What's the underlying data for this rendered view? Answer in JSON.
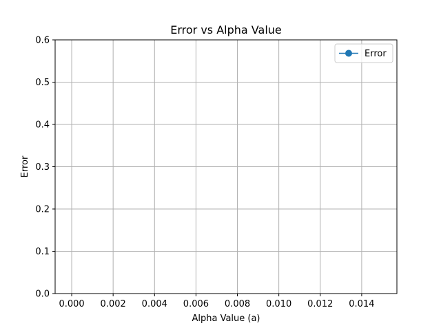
{
  "chart_data": {
    "type": "line",
    "title": "Error vs Alpha Value",
    "xlabel": "Alpha Value (a)",
    "ylabel": "Error",
    "xlim": [
      -0.0008,
      0.0157
    ],
    "ylim": [
      0,
      0.6
    ],
    "xticks": [
      0.0,
      0.002,
      0.004,
      0.006,
      0.008,
      0.01,
      0.012,
      0.014
    ],
    "xtick_labels": [
      "0.000",
      "0.002",
      "0.004",
      "0.006",
      "0.008",
      "0.010",
      "0.012",
      "0.014"
    ],
    "yticks": [
      0.0,
      0.1,
      0.2,
      0.3,
      0.4,
      0.5,
      0.6
    ],
    "ytick_labels": [
      "0.0",
      "0.1",
      "0.2",
      "0.3",
      "0.4",
      "0.5",
      "0.6"
    ],
    "grid": true,
    "legend_position": "top-right",
    "series": [
      {
        "name": "Error",
        "color": "#1f77b4",
        "marker": "circle",
        "x": [],
        "y": []
      }
    ]
  }
}
